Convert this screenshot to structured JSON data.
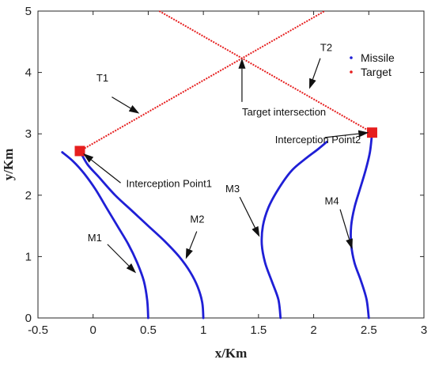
{
  "chart_data": {
    "type": "line",
    "xlabel": "x/Km",
    "ylabel": "y/Km",
    "xlim": [
      -0.5,
      3
    ],
    "ylim": [
      0,
      5
    ],
    "xticks": [
      "-0.5",
      "0",
      "0.5",
      "1",
      "1.5",
      "2",
      "2.5",
      "3"
    ],
    "yticks": [
      "0",
      "1",
      "2",
      "3",
      "4",
      "5"
    ],
    "grid": false,
    "legend": {
      "placement": "top-right",
      "entries": [
        {
          "label": "Missile",
          "color": "#1f1fd6"
        },
        {
          "label": "Target",
          "color": "#e61e1e"
        }
      ]
    },
    "series": [
      {
        "name": "Missile",
        "id": "M1",
        "color": "#1f1fd6",
        "x": [
          0.5,
          0.49,
          0.46,
          0.4,
          0.32,
          0.22,
          0.12,
          0.02,
          -0.08,
          -0.18,
          -0.28
        ],
        "y": [
          0,
          0.3,
          0.6,
          0.9,
          1.2,
          1.5,
          1.8,
          2.1,
          2.35,
          2.55,
          2.7
        ]
      },
      {
        "name": "Missile",
        "id": "M2",
        "color": "#1f1fd6",
        "x": [
          1.0,
          0.99,
          0.95,
          0.88,
          0.78,
          0.65,
          0.5,
          0.35,
          0.2,
          0.05,
          -0.05,
          -0.12
        ],
        "y": [
          0,
          0.25,
          0.5,
          0.75,
          1.0,
          1.25,
          1.5,
          1.75,
          2.0,
          2.3,
          2.5,
          2.72
        ]
      },
      {
        "name": "Missile",
        "id": "M3",
        "color": "#1f1fd6",
        "x": [
          1.7,
          1.68,
          1.62,
          1.56,
          1.53,
          1.54,
          1.59,
          1.68,
          1.8,
          1.93,
          2.04,
          2.12
        ],
        "y": [
          0,
          0.3,
          0.6,
          0.9,
          1.2,
          1.5,
          1.8,
          2.1,
          2.4,
          2.6,
          2.75,
          2.87
        ]
      },
      {
        "name": "Missile",
        "id": "M4",
        "color": "#1f1fd6",
        "x": [
          2.5,
          2.48,
          2.43,
          2.37,
          2.34,
          2.34,
          2.37,
          2.42,
          2.47,
          2.51,
          2.53
        ],
        "y": [
          0,
          0.3,
          0.6,
          0.9,
          1.2,
          1.5,
          1.8,
          2.1,
          2.4,
          2.7,
          3.02
        ]
      },
      {
        "name": "Target",
        "id": "T1",
        "color": "#e61e1e",
        "x": [
          -0.12,
          2.1
        ],
        "y": [
          2.72,
          5.0
        ]
      },
      {
        "name": "Target",
        "id": "T2",
        "color": "#e61e1e",
        "x": [
          0.6,
          2.53
        ],
        "y": [
          5.0,
          3.02
        ]
      }
    ],
    "interception_points": [
      {
        "label": "Interception Point1",
        "x": -0.12,
        "y": 2.72
      },
      {
        "label": "Interception Point2",
        "x": 2.53,
        "y": 3.02
      }
    ],
    "annotations": [
      {
        "text": "T1",
        "tx": 0.03,
        "ty": 3.85,
        "ax": 0.17,
        "ay": 3.6,
        "tipx": 0.42,
        "tipy": 3.33
      },
      {
        "text": "T2",
        "tx": 2.06,
        "ty": 4.35,
        "ax": 2.06,
        "ay": 4.23,
        "tipx": 1.96,
        "tipy": 3.73
      },
      {
        "text": "Target intersection",
        "tx": 1.35,
        "ty": 3.3,
        "ax": 1.35,
        "ay": 3.52,
        "tipx": 1.35,
        "tipy": 4.23
      },
      {
        "text": "Interception Point2",
        "tx": 1.65,
        "ty": 2.85,
        "ax": 2.1,
        "ay": 2.94,
        "tipx": 2.5,
        "tipy": 3.02
      },
      {
        "text": "Interception Point1",
        "tx": 0.3,
        "ty": 2.13,
        "ax": 0.25,
        "ay": 2.2,
        "tipx": -0.09,
        "tipy": 2.68
      },
      {
        "text": "M1",
        "tx": -0.05,
        "ty": 1.25,
        "ax": 0.13,
        "ay": 1.2,
        "tipx": 0.39,
        "tipy": 0.73
      },
      {
        "text": "M2",
        "tx": 0.88,
        "ty": 1.55,
        "ax": 0.94,
        "ay": 1.41,
        "tipx": 0.84,
        "tipy": 0.96
      },
      {
        "text": "M3",
        "tx": 1.2,
        "ty": 2.05,
        "ax": 1.33,
        "ay": 1.97,
        "tipx": 1.51,
        "tipy": 1.32
      },
      {
        "text": "M4",
        "tx": 2.1,
        "ty": 1.85,
        "ax": 2.24,
        "ay": 1.77,
        "tipx": 2.35,
        "tipy": 1.12
      }
    ]
  }
}
